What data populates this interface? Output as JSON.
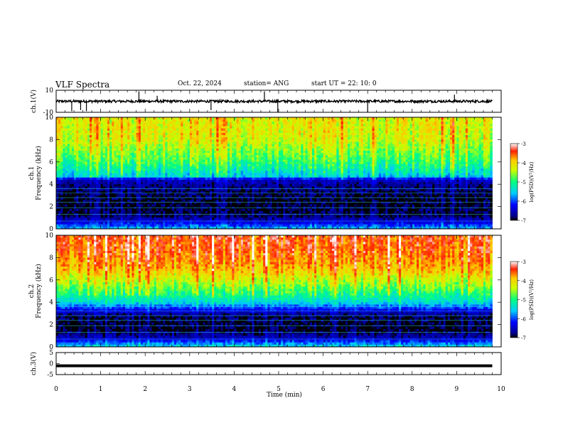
{
  "header": {
    "title": "VLF Spectra",
    "date": "Oct. 22, 2024",
    "station": "station= ANG",
    "start": "start  UT =   22: 10: 0"
  },
  "chart_data": [
    {
      "type": "line",
      "panel": "ch1-waveform",
      "ylabel": "ch.1(V)",
      "ylim": [
        -10,
        10
      ],
      "yticks": [
        "10",
        "-10"
      ],
      "xlim": [
        0,
        10
      ],
      "description_series": "noise trace around ~0 V with spikes",
      "baseline": 0,
      "spikes": [
        {
          "t": 0.35,
          "v": -9
        },
        {
          "t": 0.55,
          "v": -8
        },
        {
          "t": 0.68,
          "v": -9
        },
        {
          "t": 1.86,
          "v": 9
        },
        {
          "t": 2.27,
          "v": 5
        },
        {
          "t": 3.48,
          "v": -8
        },
        {
          "t": 4.68,
          "v": 9
        },
        {
          "t": 4.98,
          "v": -10
        },
        {
          "t": 7.0,
          "v": -10
        },
        {
          "t": 8.95,
          "v": 6
        }
      ]
    },
    {
      "type": "heatmap",
      "panel": "ch1-spectrogram",
      "ylabel_line1": "ch.1",
      "ylabel_line2": "Frequency (kHz)",
      "ylim": [
        0,
        10
      ],
      "yticks": [
        "0",
        "2",
        "4",
        "6",
        "8",
        "10"
      ],
      "xlim": [
        0,
        9.8
      ],
      "colorbar": {
        "label": "log(PSD)(V²/Hz)",
        "range": [
          -7,
          -3
        ],
        "ticks": [
          "-3",
          "-4",
          "-5",
          "-6",
          "-7"
        ]
      },
      "level_profile": [
        {
          "f": 0.0,
          "v": -5.6
        },
        {
          "f": 0.6,
          "v": -6.4
        },
        {
          "f": 1.2,
          "v": -6.9
        },
        {
          "f": 2.5,
          "v": -7.0
        },
        {
          "f": 3.8,
          "v": -6.8
        },
        {
          "f": 4.4,
          "v": -6.5
        },
        {
          "f": 4.7,
          "v": -5.5
        },
        {
          "f": 6.0,
          "v": -4.9
        },
        {
          "f": 8.0,
          "v": -4.3
        },
        {
          "f": 10.0,
          "v": -4.2
        }
      ]
    },
    {
      "type": "heatmap",
      "panel": "ch2-spectrogram",
      "ylabel_line1": "ch.2",
      "ylabel_line2": "Frequency (kHz)",
      "ylim": [
        0,
        10
      ],
      "yticks": [
        "0",
        "2",
        "4",
        "6",
        "8",
        "10"
      ],
      "xlim": [
        0,
        9.8
      ],
      "colorbar": {
        "label": "log(PSD)(V²/Hz)",
        "range": [
          -7,
          -3
        ],
        "ticks": [
          "-3",
          "-4",
          "-5",
          "-6",
          "-7"
        ]
      },
      "level_profile": [
        {
          "f": 0.0,
          "v": -5.4
        },
        {
          "f": 0.8,
          "v": -6.6
        },
        {
          "f": 1.5,
          "v": -7.0
        },
        {
          "f": 2.8,
          "v": -6.9
        },
        {
          "f": 3.4,
          "v": -6.2
        },
        {
          "f": 4.0,
          "v": -5.4
        },
        {
          "f": 5.5,
          "v": -4.6
        },
        {
          "f": 7.0,
          "v": -3.9
        },
        {
          "f": 8.5,
          "v": -3.6
        },
        {
          "f": 10.0,
          "v": -3.5
        }
      ]
    },
    {
      "type": "line",
      "panel": "ch3-waveform",
      "ylabel": "ch.3(V)",
      "ylim": [
        -5,
        5
      ],
      "yticks": [
        "5",
        "0",
        "-5"
      ],
      "xlim": [
        0,
        10
      ],
      "level": -1.0,
      "xlabel": "Time  (min)",
      "xticks": [
        "0",
        "1",
        "2",
        "3",
        "4",
        "5",
        "6",
        "7",
        "8",
        "9",
        "10"
      ]
    }
  ]
}
